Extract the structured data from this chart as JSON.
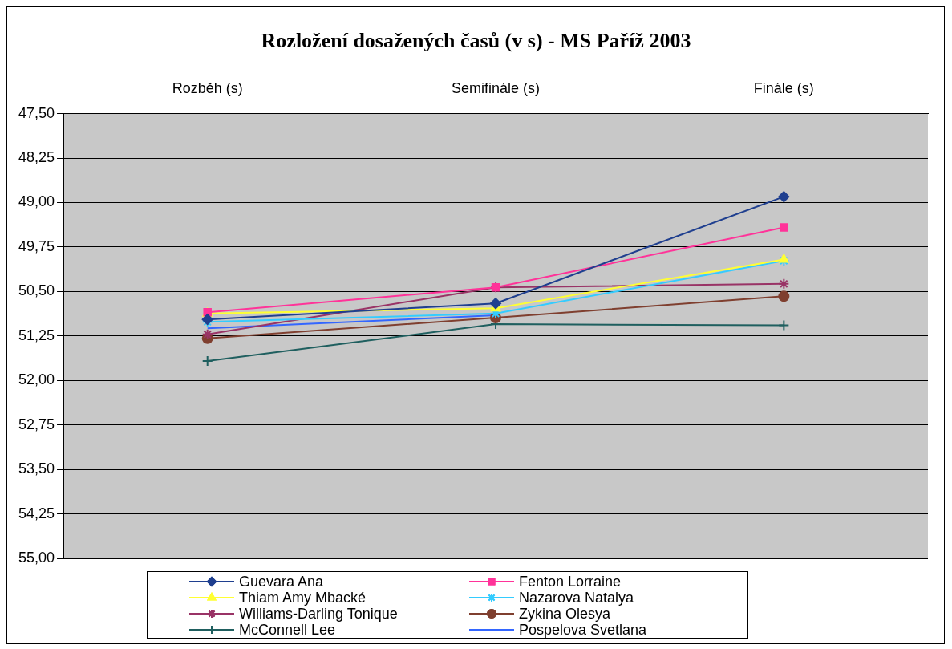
{
  "chart_data": {
    "type": "line",
    "title": "Rozložení dosažených časů (v s) - MS Paříž 2003",
    "categories": [
      "Rozběh (s)",
      "Semifinále (s)",
      "Finále (s)"
    ],
    "ylim": [
      55,
      47.5
    ],
    "yticks": [
      {
        "value": 47.5,
        "label": "47,50"
      },
      {
        "value": 48.25,
        "label": "48,25"
      },
      {
        "value": 49,
        "label": "49,00"
      },
      {
        "value": 49.75,
        "label": "49,75"
      },
      {
        "value": 50.5,
        "label": "50,50"
      },
      {
        "value": 51.25,
        "label": "51,25"
      },
      {
        "value": 52,
        "label": "52,00"
      },
      {
        "value": 52.75,
        "label": "52,75"
      },
      {
        "value": 53.5,
        "label": "53,50"
      },
      {
        "value": 54.25,
        "label": "54,25"
      },
      {
        "value": 55,
        "label": "55,00"
      }
    ],
    "grid": "y",
    "legend": "bottom",
    "line_style": "solid",
    "series": [
      {
        "name": "Guevara Ana",
        "color": "#1f3f8f",
        "marker": "diamond",
        "values": [
          50.97,
          50.7,
          48.9
        ]
      },
      {
        "name": "Fenton Lorraine",
        "color": "#ff3399",
        "marker": "square",
        "values": [
          50.85,
          50.43,
          49.42
        ]
      },
      {
        "name": "Thiam Amy Mbacké",
        "color": "#ffff33",
        "marker": "triangle",
        "values": [
          50.87,
          50.78,
          49.96
        ]
      },
      {
        "name": "Nazarova Natalya",
        "color": "#33ccff",
        "marker": "cross",
        "values": [
          51.01,
          50.87,
          49.98
        ]
      },
      {
        "name": "Williams-Darling Tonique",
        "color": "#993366",
        "marker": "cross",
        "values": [
          51.22,
          50.43,
          50.37
        ]
      },
      {
        "name": "Zykina Olesya",
        "color": "#7f3f2f",
        "marker": "circle",
        "values": [
          51.29,
          50.94,
          50.58
        ]
      },
      {
        "name": "McConnell Lee",
        "color": "#1f5f5f",
        "marker": "plus",
        "values": [
          51.67,
          51.05,
          51.07
        ]
      },
      {
        "name": "Pospelova Svetlana",
        "color": "#3366ff",
        "marker": "none",
        "values": [
          51.12,
          50.9,
          null
        ]
      }
    ]
  }
}
